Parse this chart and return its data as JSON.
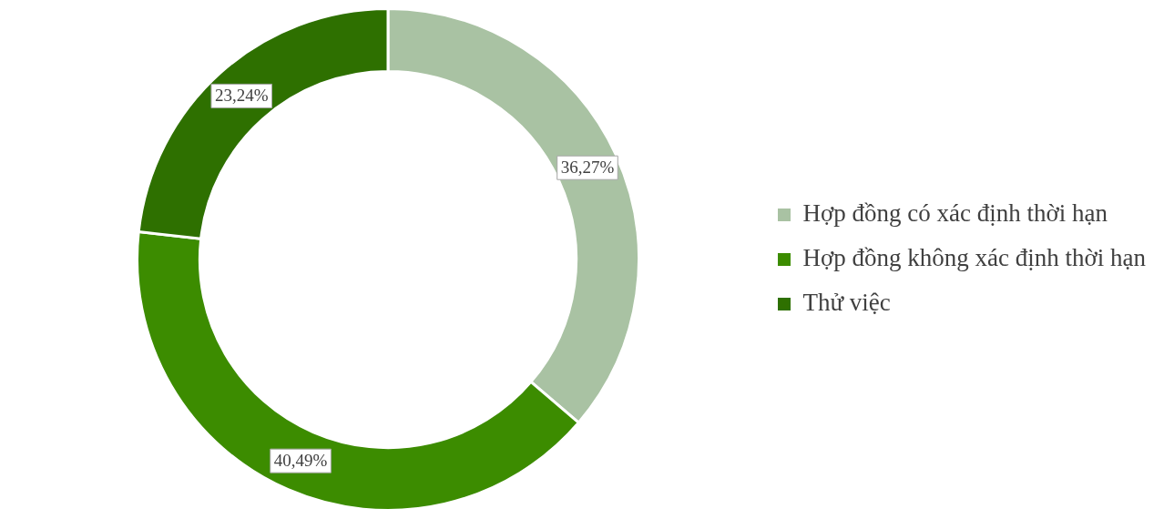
{
  "chart_data": {
    "type": "donut",
    "categories": [
      "Hợp đồng có xác định thời hạn",
      "Hợp đồng không xác định thời hạn",
      "Thử việc"
    ],
    "values": [
      36.27,
      40.49,
      23.24
    ],
    "colors": [
      "#a9c2a3",
      "#3c8c00",
      "#2e7000"
    ],
    "value_labels": [
      "36,27%",
      "40,49%",
      "23,24%"
    ],
    "legend": "right"
  }
}
